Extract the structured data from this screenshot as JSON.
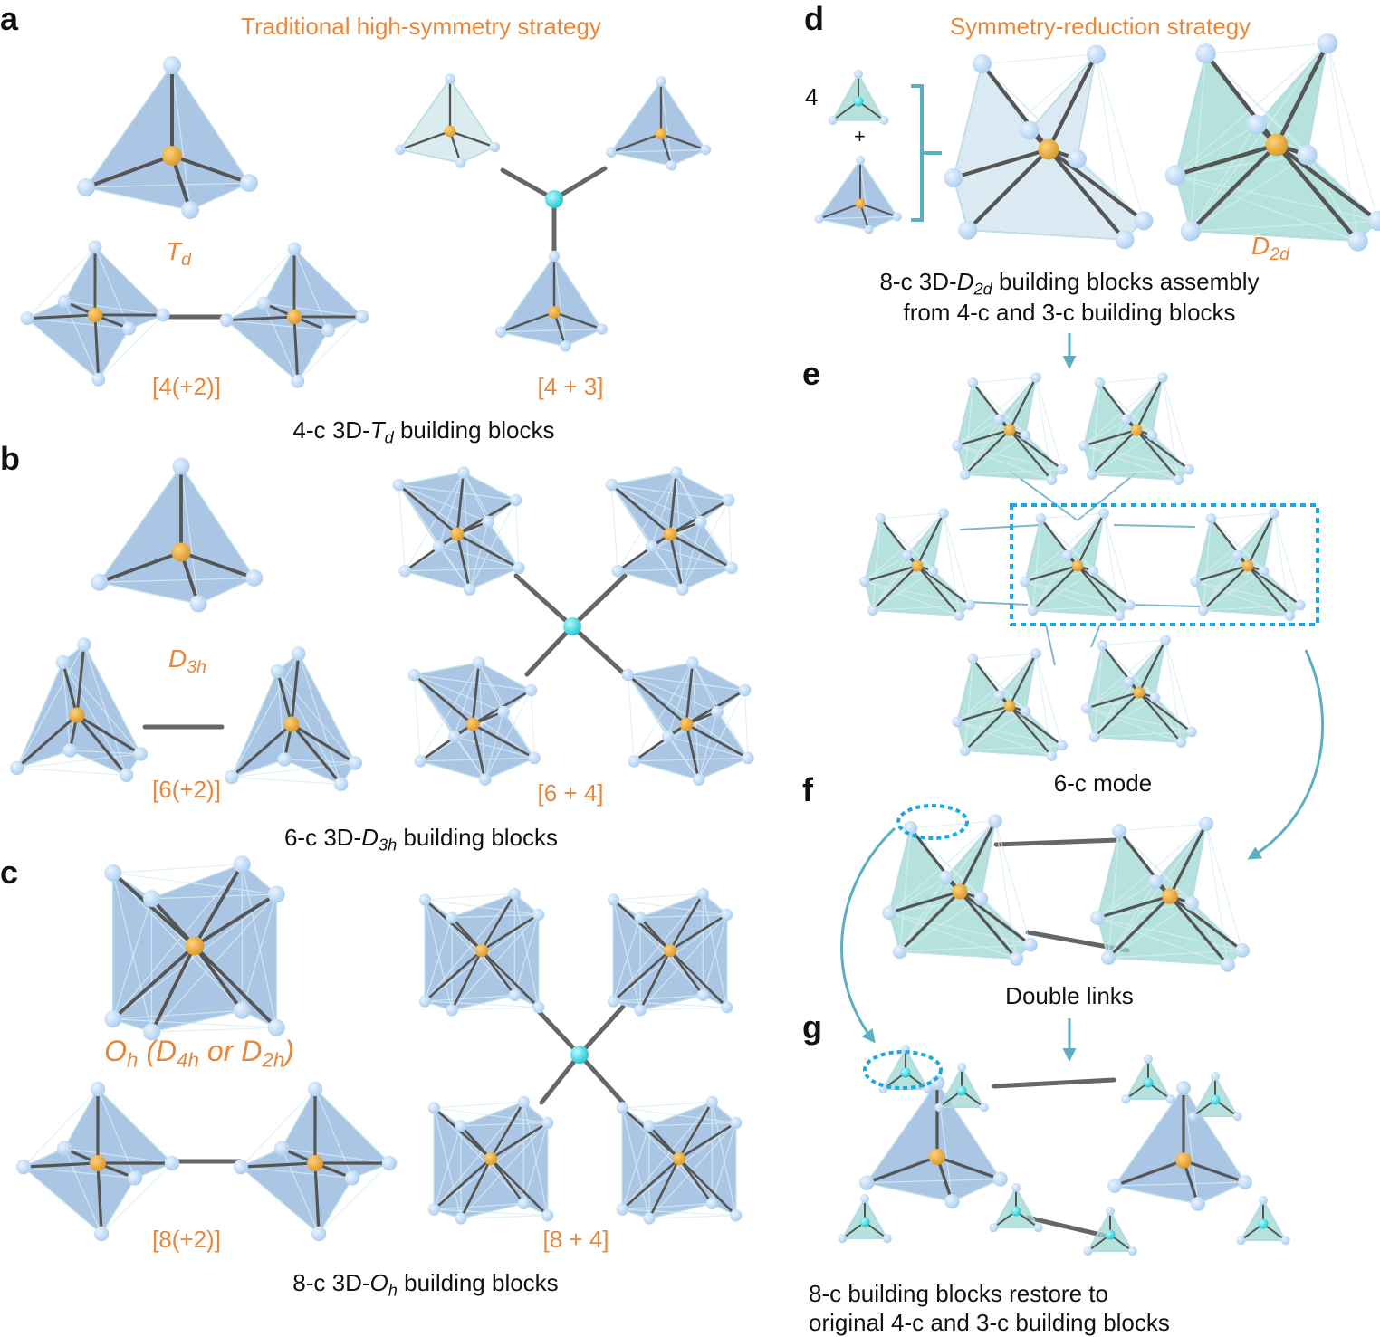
{
  "colors": {
    "accent_orange": "#e8873a",
    "blue_block": "#8fb3dc",
    "teal_block": "#9ed8d2",
    "node_cyan": "#19c6cf",
    "metal_gold": "#d8962a",
    "vertex_ball": "#a9cdef",
    "arrow_teal": "#5aafc0",
    "highlight_dotted": "#1aa8e0"
  },
  "panel_a": {
    "letter": "a",
    "heading": "Traditional high-symmetry strategy",
    "symmetry": {
      "main": "T",
      "sub": "d"
    },
    "label_left": "[4(+2)]",
    "label_right": "[4 + 3]",
    "caption": {
      "pre": "4-c 3D-",
      "main": "T",
      "sub": "d",
      "post": " building blocks"
    }
  },
  "panel_b": {
    "letter": "b",
    "symmetry": {
      "main": "D",
      "sub": "3h"
    },
    "label_left": "[6(+2)]",
    "label_right": "[6 + 4]",
    "caption": {
      "pre": "6-c 3D-",
      "main": "D",
      "sub": "3h",
      "post": " building blocks"
    }
  },
  "panel_c": {
    "letter": "c",
    "symmetry": {
      "a": "O",
      "a_sub": "h",
      "mid1": " (",
      "b": "D",
      "b_sub": "4h",
      "or": " or ",
      "c": "D",
      "c_sub": "2h",
      "end": ")"
    },
    "label_left": "[8(+2)]",
    "label_right": "[8 + 4]",
    "caption": {
      "pre": "8-c 3D-",
      "main": "O",
      "sub": "h",
      "post": " building blocks"
    }
  },
  "panel_d": {
    "letter": "d",
    "heading": "Symmetry-reduction strategy",
    "count": "4",
    "plus": "+",
    "symmetry": {
      "main": "D",
      "sub": "2d"
    },
    "caption_line1": {
      "pre": "8-c 3D-",
      "main": "D",
      "sub": "2d",
      "post": " building blocks assembly"
    },
    "caption_line2": "from 4-c and 3-c building blocks"
  },
  "panel_e": {
    "letter": "e",
    "caption": "6-c mode"
  },
  "panel_f": {
    "letter": "f",
    "caption": "Double links"
  },
  "panel_g": {
    "letter": "g",
    "caption_line1": "8-c building blocks restore to",
    "caption_line2": "original 4-c and 3-c building blocks"
  }
}
